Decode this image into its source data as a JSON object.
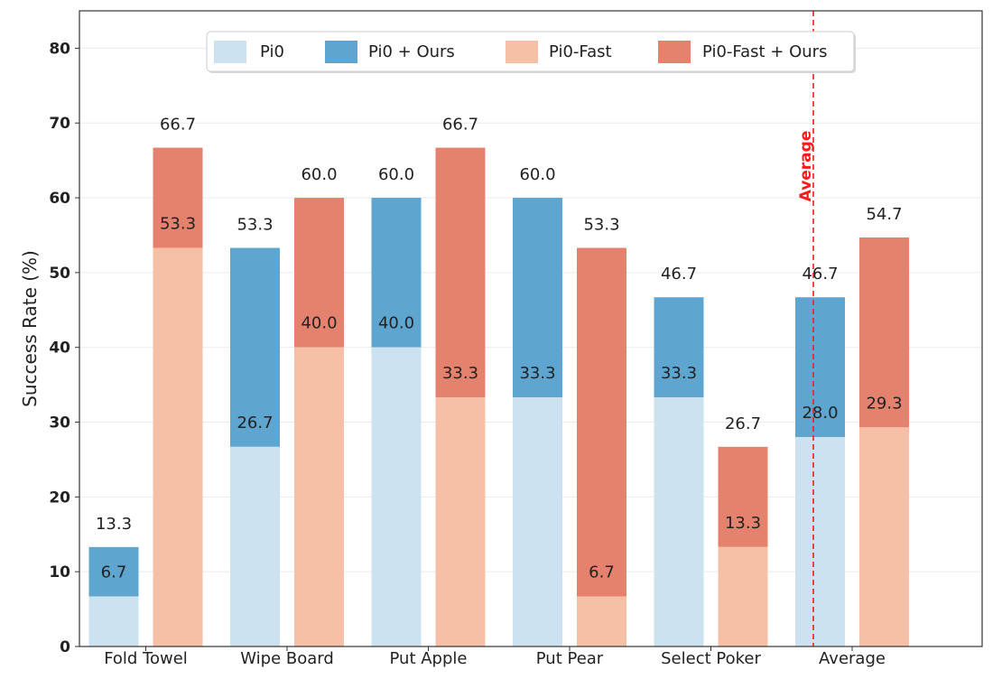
{
  "chart_data": {
    "type": "bar",
    "stacked_pairs": true,
    "ylabel": "Success Rate (%)",
    "xlabel": "",
    "ylim": [
      0,
      85
    ],
    "yticks": [
      0,
      10,
      20,
      30,
      40,
      50,
      60,
      70,
      80
    ],
    "grid": true,
    "legend_position": "top-center",
    "categories": [
      "Fold Towel",
      "Wipe Board",
      "Put Apple",
      "Put Pear",
      "Select Poker",
      "Average"
    ],
    "series": [
      {
        "name": "Pi0",
        "color": "#cde2f0",
        "values": [
          6.7,
          26.7,
          40.0,
          33.3,
          33.3,
          28.0
        ]
      },
      {
        "name": "Pi0 + Ours",
        "color": "#5ea5d0",
        "values": [
          13.3,
          53.3,
          60.0,
          60.0,
          46.7,
          46.7
        ]
      },
      {
        "name": "Pi0-Fast",
        "color": "#f5c0a5",
        "values": [
          53.3,
          40.0,
          33.3,
          6.7,
          13.3,
          29.3
        ]
      },
      {
        "name": "Pi0-Fast + Ours",
        "color": "#e4826e",
        "values": [
          66.7,
          60.0,
          66.7,
          53.3,
          26.7,
          54.7
        ]
      }
    ],
    "base_labels": {
      "Pi0": [
        "6.7",
        "26.7",
        "40.0",
        "33.3",
        "33.3",
        "28.0"
      ],
      "Pi0-Fast": [
        "53.3",
        "40.0",
        "33.3",
        "6.7",
        "13.3",
        "29.3"
      ]
    },
    "top_labels": {
      "Pi0 + Ours": [
        "13.3",
        "53.3",
        "60.0",
        "60.0",
        "46.7",
        "46.7"
      ],
      "Pi0-Fast + Ours": [
        "66.7",
        "60.0",
        "66.7",
        "53.3",
        "26.7",
        "54.7"
      ]
    },
    "divider": {
      "label": "Average",
      "color": "#ff1a1a",
      "between_categories": [
        4,
        5
      ]
    }
  }
}
